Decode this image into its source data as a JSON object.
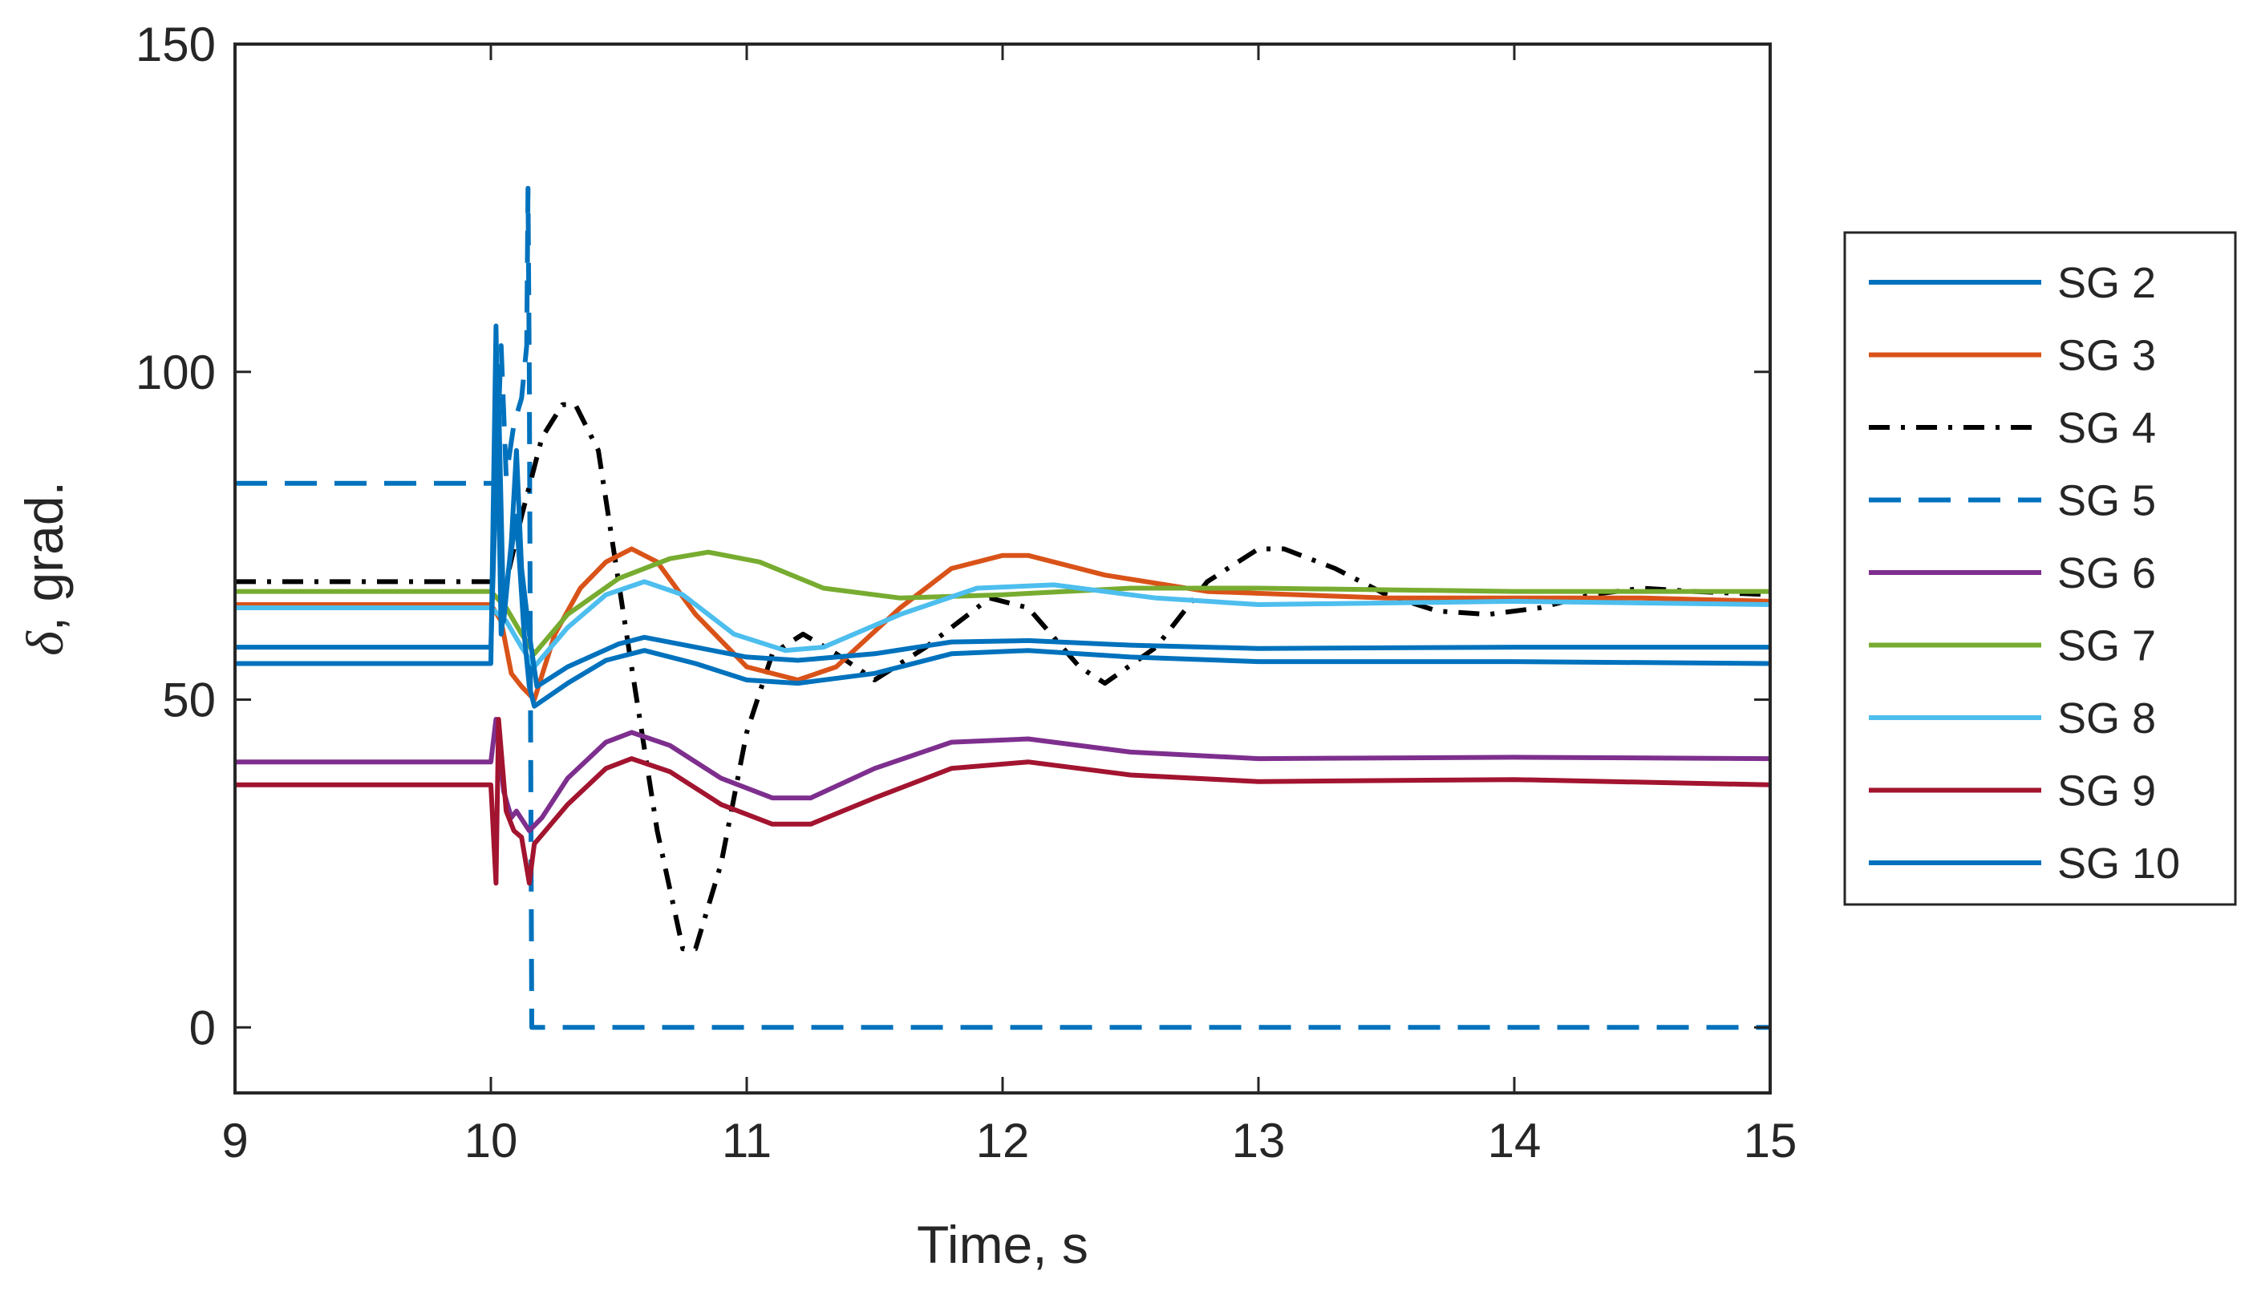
{
  "chart_data": {
    "type": "line",
    "xlabel": "Time, s",
    "ylabel_symbol": "δ",
    "ylabel_rest": ", grad.",
    "xlim": [
      9,
      15
    ],
    "ylim": [
      -10,
      150
    ],
    "xticks": [
      9,
      10,
      11,
      12,
      13,
      14,
      15
    ],
    "yticks": [
      0,
      50,
      100,
      150
    ],
    "legend_position": "outside-right",
    "series": [
      {
        "name": "SG 2",
        "color": "#0072BD",
        "style": "solid",
        "points": [
          [
            9,
            58
          ],
          [
            10,
            58
          ],
          [
            10.03,
            96
          ],
          [
            10.05,
            62
          ],
          [
            10.08,
            74
          ],
          [
            10.1,
            88
          ],
          [
            10.12,
            70
          ],
          [
            10.15,
            60
          ],
          [
            10.18,
            52
          ],
          [
            10.3,
            55
          ],
          [
            10.5,
            58.5
          ],
          [
            10.6,
            59.5
          ],
          [
            10.8,
            58
          ],
          [
            11.0,
            56.5
          ],
          [
            11.2,
            56
          ],
          [
            11.5,
            57
          ],
          [
            11.8,
            58.8
          ],
          [
            12.1,
            59
          ],
          [
            12.5,
            58.3
          ],
          [
            13,
            57.8
          ],
          [
            14,
            58
          ],
          [
            15,
            58
          ]
        ]
      },
      {
        "name": "SG 3",
        "color": "#D95319",
        "style": "solid",
        "points": [
          [
            9,
            64.5
          ],
          [
            10,
            64.5
          ],
          [
            10.04,
            62
          ],
          [
            10.08,
            54
          ],
          [
            10.12,
            52
          ],
          [
            10.17,
            50
          ],
          [
            10.25,
            60
          ],
          [
            10.35,
            67
          ],
          [
            10.45,
            71
          ],
          [
            10.55,
            73
          ],
          [
            10.65,
            71
          ],
          [
            10.8,
            63
          ],
          [
            11.0,
            55
          ],
          [
            11.2,
            53
          ],
          [
            11.35,
            55
          ],
          [
            11.6,
            64
          ],
          [
            11.8,
            70
          ],
          [
            12.0,
            72
          ],
          [
            12.1,
            72
          ],
          [
            12.4,
            69
          ],
          [
            12.8,
            66.5
          ],
          [
            13.5,
            65.5
          ],
          [
            14.5,
            65.5
          ],
          [
            15,
            65
          ]
        ]
      },
      {
        "name": "SG 4",
        "color": "#000000",
        "style": "dashdot",
        "points": [
          [
            9,
            68
          ],
          [
            10,
            68
          ],
          [
            10.06,
            68
          ],
          [
            10.12,
            78
          ],
          [
            10.2,
            90
          ],
          [
            10.28,
            95
          ],
          [
            10.33,
            95
          ],
          [
            10.42,
            88
          ],
          [
            10.55,
            55
          ],
          [
            10.65,
            30
          ],
          [
            10.75,
            12
          ],
          [
            10.8,
            12
          ],
          [
            10.9,
            25
          ],
          [
            11.0,
            45
          ],
          [
            11.1,
            57
          ],
          [
            11.22,
            60
          ],
          [
            11.35,
            57
          ],
          [
            11.5,
            53
          ],
          [
            11.7,
            58
          ],
          [
            11.95,
            65.5
          ],
          [
            12.1,
            64
          ],
          [
            12.3,
            55
          ],
          [
            12.4,
            52.5
          ],
          [
            12.6,
            58
          ],
          [
            12.8,
            68
          ],
          [
            13.0,
            73
          ],
          [
            13.1,
            73
          ],
          [
            13.3,
            70
          ],
          [
            13.5,
            66
          ],
          [
            13.7,
            63.5
          ],
          [
            13.9,
            63
          ],
          [
            14.1,
            64
          ],
          [
            14.3,
            66
          ],
          [
            14.5,
            67
          ],
          [
            14.7,
            66.5
          ],
          [
            15,
            66
          ]
        ]
      },
      {
        "name": "SG 5",
        "color": "#0072BD",
        "style": "dashed",
        "points": [
          [
            9,
            83
          ],
          [
            10,
            83
          ],
          [
            10.02,
            83
          ],
          [
            10.04,
            104
          ],
          [
            10.06,
            84
          ],
          [
            10.09,
            92
          ],
          [
            10.12,
            96
          ],
          [
            10.14,
            104
          ],
          [
            10.145,
            128
          ],
          [
            10.15,
            100
          ],
          [
            10.155,
            50
          ],
          [
            10.16,
            0
          ],
          [
            15,
            0
          ]
        ]
      },
      {
        "name": "SG 6",
        "color": "#7E2F8E",
        "style": "solid",
        "points": [
          [
            9,
            40.5
          ],
          [
            10,
            40.5
          ],
          [
            10.02,
            47
          ],
          [
            10.05,
            36
          ],
          [
            10.08,
            32
          ],
          [
            10.1,
            33
          ],
          [
            10.15,
            30
          ],
          [
            10.2,
            32
          ],
          [
            10.3,
            38
          ],
          [
            10.45,
            43.5
          ],
          [
            10.55,
            45
          ],
          [
            10.7,
            43
          ],
          [
            10.9,
            38
          ],
          [
            11.1,
            35
          ],
          [
            11.25,
            35
          ],
          [
            11.5,
            39.5
          ],
          [
            11.8,
            43.5
          ],
          [
            12.1,
            44
          ],
          [
            12.5,
            42
          ],
          [
            13,
            41
          ],
          [
            14,
            41.2
          ],
          [
            15,
            41
          ]
        ]
      },
      {
        "name": "SG 7",
        "color": "#77AC30",
        "style": "solid",
        "points": [
          [
            9,
            66.5
          ],
          [
            10,
            66.5
          ],
          [
            10.06,
            64
          ],
          [
            10.12,
            60
          ],
          [
            10.17,
            57
          ],
          [
            10.3,
            63
          ],
          [
            10.5,
            68.5
          ],
          [
            10.7,
            71.5
          ],
          [
            10.85,
            72.5
          ],
          [
            11.05,
            71
          ],
          [
            11.3,
            67
          ],
          [
            11.6,
            65.5
          ],
          [
            12.0,
            66
          ],
          [
            12.5,
            67
          ],
          [
            13,
            67
          ],
          [
            14,
            66.5
          ],
          [
            15,
            66.5
          ]
        ]
      },
      {
        "name": "SG 8",
        "color": "#4DBEEE",
        "style": "solid",
        "points": [
          [
            9,
            64
          ],
          [
            10,
            64
          ],
          [
            10.06,
            62
          ],
          [
            10.12,
            58
          ],
          [
            10.17,
            55
          ],
          [
            10.3,
            61
          ],
          [
            10.45,
            66
          ],
          [
            10.6,
            68
          ],
          [
            10.75,
            66
          ],
          [
            10.95,
            60
          ],
          [
            11.15,
            57.5
          ],
          [
            11.3,
            58
          ],
          [
            11.6,
            63
          ],
          [
            11.9,
            67
          ],
          [
            12.2,
            67.5
          ],
          [
            12.6,
            65.5
          ],
          [
            13,
            64.5
          ],
          [
            14,
            65
          ],
          [
            15,
            64.5
          ]
        ]
      },
      {
        "name": "SG 9",
        "color": "#A2142F",
        "style": "solid",
        "points": [
          [
            9,
            37
          ],
          [
            10,
            37
          ],
          [
            10.02,
            22
          ],
          [
            10.03,
            47
          ],
          [
            10.06,
            33
          ],
          [
            10.09,
            30
          ],
          [
            10.12,
            29
          ],
          [
            10.15,
            22
          ],
          [
            10.17,
            28
          ],
          [
            10.3,
            34
          ],
          [
            10.45,
            39.5
          ],
          [
            10.55,
            41
          ],
          [
            10.7,
            39
          ],
          [
            10.9,
            34
          ],
          [
            11.1,
            31
          ],
          [
            11.25,
            31
          ],
          [
            11.5,
            35
          ],
          [
            11.8,
            39.5
          ],
          [
            12.1,
            40.5
          ],
          [
            12.5,
            38.5
          ],
          [
            13,
            37.5
          ],
          [
            14,
            37.8
          ],
          [
            15,
            37
          ]
        ]
      },
      {
        "name": "SG 10",
        "color": "#0072BD",
        "style": "solid",
        "points": [
          [
            9,
            55.5
          ],
          [
            10,
            55.5
          ],
          [
            10.02,
            107
          ],
          [
            10.04,
            60
          ],
          [
            10.07,
            70
          ],
          [
            10.1,
            78
          ],
          [
            10.13,
            60
          ],
          [
            10.15,
            52
          ],
          [
            10.17,
            49
          ],
          [
            10.3,
            52.5
          ],
          [
            10.45,
            56
          ],
          [
            10.6,
            57.5
          ],
          [
            10.8,
            55.5
          ],
          [
            11.0,
            53
          ],
          [
            11.2,
            52.5
          ],
          [
            11.5,
            54
          ],
          [
            11.8,
            57
          ],
          [
            12.1,
            57.5
          ],
          [
            12.5,
            56.5
          ],
          [
            13,
            55.8
          ],
          [
            14,
            55.8
          ],
          [
            15,
            55.5
          ]
        ]
      }
    ]
  }
}
